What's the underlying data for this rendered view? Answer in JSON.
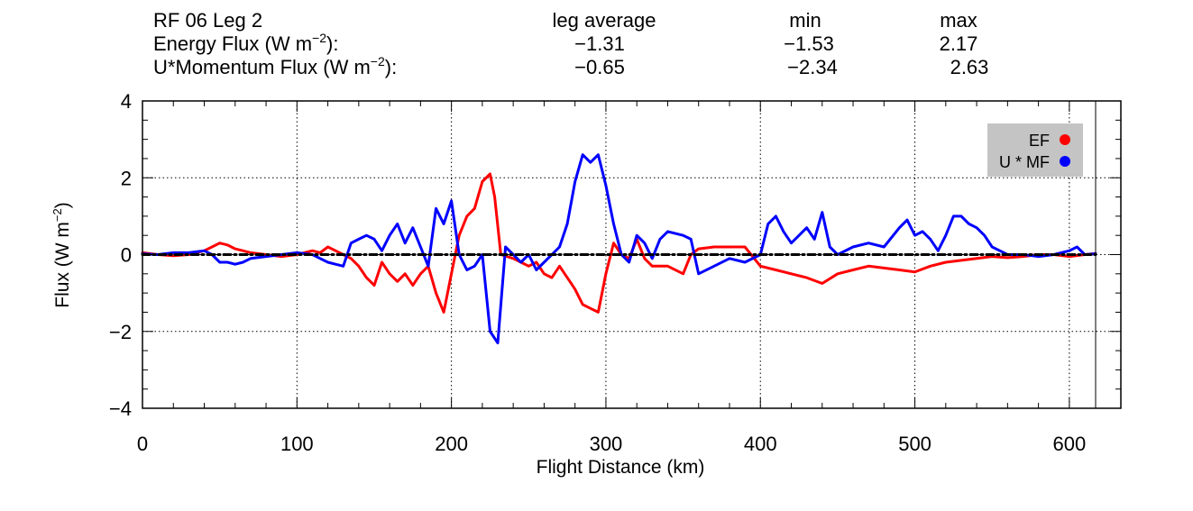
{
  "header": {
    "title": "RF 06 Leg 2",
    "col_avg": "leg average",
    "col_min": "min",
    "col_max": "max",
    "rows": [
      {
        "label": "Energy Flux (W m",
        "sup": "−2",
        "label_end": "):",
        "avg": "−1.31",
        "min": "−1.53",
        "max": "2.17"
      },
      {
        "label": "U*Momentum Flux (W m",
        "sup": "−2",
        "label_end": "):",
        "avg": "−0.65",
        "min": "−2.34",
        "max": "2.63"
      }
    ]
  },
  "chart_data": {
    "type": "line",
    "xlabel": "Flight Distance (km)",
    "ylabel": "Flux (W m",
    "ylabel_sup": "−2",
    "ylabel_end": ")",
    "xlim": [
      0,
      617
    ],
    "ylim": [
      -4,
      4
    ],
    "xticks": [
      0,
      100,
      200,
      300,
      400,
      500,
      600
    ],
    "yticks": [
      -4,
      -2,
      0,
      2,
      4
    ],
    "xtick_labels": [
      "0",
      "100",
      "200",
      "300",
      "400",
      "500",
      "600"
    ],
    "ytick_labels": [
      "−4",
      "−2",
      "0",
      "2",
      "4"
    ],
    "grid": true,
    "legend_position": "top-right",
    "series": [
      {
        "name": "EF",
        "color": "#ff0000",
        "x": [
          0,
          10,
          20,
          30,
          40,
          45,
          50,
          55,
          60,
          65,
          70,
          80,
          90,
          100,
          110,
          115,
          120,
          125,
          130,
          135,
          140,
          145,
          150,
          155,
          160,
          165,
          170,
          175,
          180,
          185,
          190,
          195,
          200,
          205,
          210,
          215,
          220,
          225,
          228,
          232,
          240,
          245,
          250,
          255,
          260,
          265,
          270,
          275,
          280,
          285,
          290,
          295,
          300,
          305,
          310,
          315,
          320,
          325,
          330,
          340,
          350,
          355,
          360,
          370,
          380,
          390,
          400,
          410,
          420,
          430,
          440,
          450,
          460,
          470,
          480,
          490,
          500,
          510,
          520,
          530,
          540,
          550,
          560,
          570,
          580,
          590,
          600,
          610,
          617
        ],
        "y": [
          0.05,
          0,
          -0.03,
          0,
          0.1,
          0.2,
          0.3,
          0.25,
          0.15,
          0.1,
          0.05,
          0,
          -0.05,
          0,
          0.1,
          0.05,
          0.2,
          0.1,
          0,
          -0.1,
          -0.3,
          -0.6,
          -0.8,
          -0.2,
          -0.5,
          -0.7,
          -0.5,
          -0.8,
          -0.5,
          -0.3,
          -1.0,
          -1.5,
          -0.5,
          0.5,
          1.0,
          1.2,
          1.9,
          2.1,
          1.5,
          0,
          -0.1,
          -0.2,
          -0.3,
          -0.2,
          -0.5,
          -0.6,
          -0.3,
          -0.6,
          -0.9,
          -1.3,
          -1.4,
          -1.5,
          -0.5,
          0.3,
          0,
          -0.1,
          0.4,
          -0.1,
          -0.3,
          -0.3,
          -0.5,
          0,
          0.15,
          0.2,
          0.2,
          0.2,
          -0.3,
          -0.4,
          -0.5,
          -0.6,
          -0.75,
          -0.5,
          -0.4,
          -0.3,
          -0.35,
          -0.4,
          -0.45,
          -0.3,
          -0.2,
          -0.15,
          -0.1,
          -0.05,
          -0.08,
          -0.05,
          0,
          0,
          -0.05,
          0,
          0.03
        ]
      },
      {
        "name": "U * MF",
        "color": "#0000ff",
        "x": [
          0,
          10,
          20,
          30,
          40,
          45,
          50,
          55,
          60,
          65,
          70,
          80,
          90,
          100,
          110,
          115,
          120,
          125,
          130,
          135,
          140,
          145,
          150,
          155,
          160,
          165,
          170,
          175,
          180,
          185,
          190,
          195,
          200,
          205,
          210,
          215,
          220,
          225,
          230,
          235,
          240,
          245,
          250,
          255,
          260,
          265,
          270,
          275,
          280,
          285,
          290,
          295,
          300,
          305,
          310,
          315,
          320,
          325,
          330,
          335,
          340,
          350,
          355,
          360,
          370,
          380,
          390,
          400,
          405,
          410,
          415,
          420,
          425,
          430,
          435,
          440,
          445,
          450,
          460,
          470,
          480,
          490,
          495,
          500,
          505,
          510,
          515,
          520,
          525,
          530,
          535,
          540,
          545,
          550,
          555,
          560,
          570,
          580,
          590,
          600,
          605,
          610,
          617
        ],
        "y": [
          0.02,
          0,
          0.05,
          0.05,
          0.1,
          0,
          -0.2,
          -0.2,
          -0.25,
          -0.2,
          -0.1,
          -0.05,
          0,
          0.05,
          0,
          -0.1,
          -0.2,
          -0.25,
          -0.3,
          0.3,
          0.4,
          0.5,
          0.4,
          0.1,
          0.5,
          0.8,
          0.3,
          0.7,
          0.2,
          -0.3,
          1.2,
          0.8,
          1.4,
          0,
          -0.4,
          -0.3,
          0,
          -2.0,
          -2.3,
          0.2,
          0,
          -0.2,
          0,
          -0.4,
          -0.2,
          0,
          0.2,
          0.8,
          1.9,
          2.6,
          2.4,
          2.6,
          1.8,
          0.8,
          0,
          -0.2,
          0.5,
          0.3,
          -0.1,
          0.4,
          0.6,
          0.5,
          0.4,
          -0.5,
          -0.3,
          -0.1,
          -0.2,
          0,
          0.8,
          1.0,
          0.6,
          0.3,
          0.5,
          0.7,
          0.4,
          1.1,
          0.2,
          0,
          0.2,
          0.3,
          0.2,
          0.7,
          0.9,
          0.5,
          0.6,
          0.4,
          0.1,
          0.5,
          1.0,
          1.0,
          0.8,
          0.7,
          0.5,
          0.2,
          0.1,
          0,
          0,
          -0.05,
          0,
          0.1,
          0.2,
          0,
          0.02
        ]
      },
      {
        "name": "",
        "color": "#000000",
        "x": [
          0,
          617
        ],
        "y": [
          0,
          0
        ]
      }
    ]
  }
}
